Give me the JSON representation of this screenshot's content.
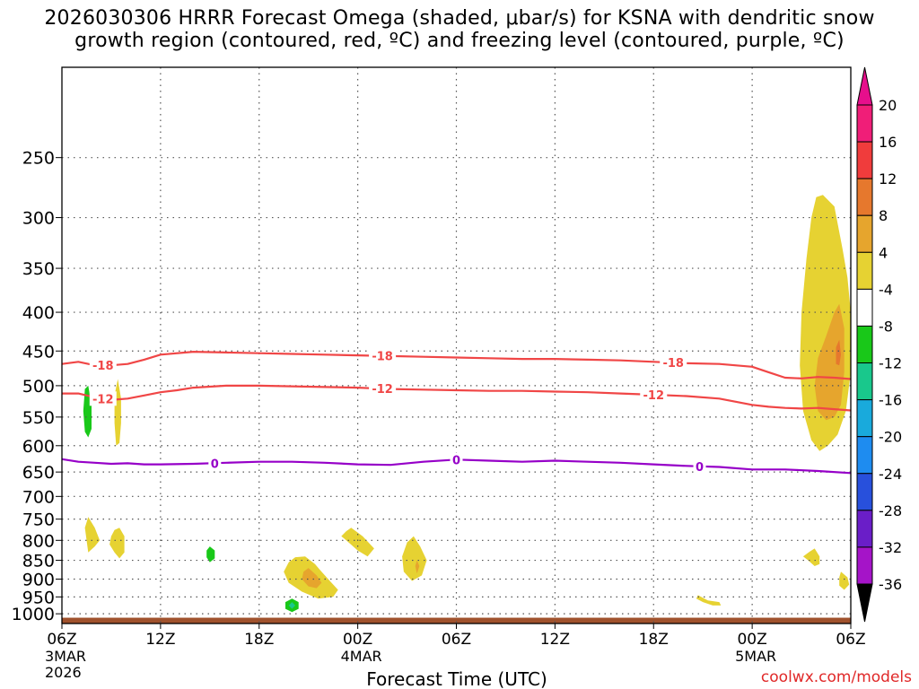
{
  "chart_data": {
    "type": "heatmap",
    "title_line1": "2026030306 HRRR Forecast Omega (shaded, μbar/s) for KSNA with dendritic snow",
    "title_line2": "growth region (contoured, red, ºC) and freezing level (contoured, purple, ºC)",
    "xlabel": "Forecast Time (UTC)",
    "ylabel": "",
    "credit": "coolwx.com/models",
    "x_range_hours": [
      0,
      48
    ],
    "y_range_hpa": [
      190,
      1030
    ],
    "y_scale": "log-pressure (inverted)",
    "grid": true,
    "x_ticks": [
      {
        "hour": 0,
        "label": "06Z",
        "sub1": "3MAR",
        "sub2": "2026"
      },
      {
        "hour": 6,
        "label": "12Z",
        "sub1": "",
        "sub2": ""
      },
      {
        "hour": 12,
        "label": "18Z",
        "sub1": "",
        "sub2": ""
      },
      {
        "hour": 18,
        "label": "00Z",
        "sub1": "4MAR",
        "sub2": ""
      },
      {
        "hour": 24,
        "label": "06Z",
        "sub1": "",
        "sub2": ""
      },
      {
        "hour": 30,
        "label": "12Z",
        "sub1": "",
        "sub2": ""
      },
      {
        "hour": 36,
        "label": "18Z",
        "sub1": "",
        "sub2": ""
      },
      {
        "hour": 42,
        "label": "00Z",
        "sub1": "5MAR",
        "sub2": ""
      },
      {
        "hour": 48,
        "label": "06Z",
        "sub1": "",
        "sub2": ""
      }
    ],
    "y_ticks": [
      250,
      300,
      350,
      400,
      450,
      500,
      550,
      600,
      650,
      700,
      750,
      800,
      850,
      900,
      950,
      1000
    ],
    "colorbar": {
      "labels": [
        "20",
        "16",
        "12",
        "8",
        "4",
        "-4",
        "-8",
        "-12",
        "-16",
        "-20",
        "-24",
        "-28",
        "-32",
        "-36"
      ],
      "colors": [
        "#f01e78",
        "#f03c3c",
        "#e6782d",
        "#e6a52d",
        "#e6d232",
        "#ffffff",
        "#19c819",
        "#19c88c",
        "#19aadc",
        "#1e8cf0",
        "#2850dc",
        "#6a1ec8",
        "#a514c8",
        "#aaaaaa"
      ],
      "top_arrow_color": "#e60f8c",
      "bottom_arrow_color": "#000000"
    },
    "contours": [
      {
        "label": "-18",
        "color": "#f04646",
        "x": [
          0,
          1,
          2,
          3,
          4,
          5,
          6,
          8,
          10,
          12,
          14,
          16,
          18,
          20,
          22,
          24,
          26,
          28,
          30,
          32,
          34,
          36,
          38,
          40,
          42,
          43,
          44,
          45,
          46,
          47,
          48
        ],
        "y": [
          468,
          465,
          470,
          470,
          468,
          462,
          455,
          451,
          452,
          453,
          454,
          455,
          456,
          457,
          458,
          459,
          460,
          461,
          461,
          462,
          463,
          465,
          467,
          468,
          472,
          480,
          488,
          489,
          487,
          488,
          490
        ],
        "label_hours": [
          2.5,
          19.5,
          37.2
        ]
      },
      {
        "label": "-12",
        "color": "#f04646",
        "x": [
          0,
          1,
          2,
          3,
          4,
          5,
          6,
          7,
          8,
          10,
          12,
          14,
          16,
          18,
          20,
          22,
          24,
          26,
          28,
          30,
          32,
          34,
          36,
          38,
          40,
          42,
          43,
          44,
          45,
          46,
          47,
          48
        ],
        "y": [
          512,
          512,
          518,
          522,
          520,
          515,
          510,
          507,
          503,
          500,
          500,
          501,
          502,
          503,
          505,
          506,
          507,
          508,
          508,
          509,
          510,
          512,
          514,
          516,
          520,
          530,
          533,
          535,
          536,
          535,
          537,
          539
        ],
        "label_hours": [
          2.5,
          19.5,
          36.0
        ]
      },
      {
        "label": "0",
        "color": "#9600c8",
        "x": [
          0,
          1,
          2,
          3,
          4,
          5,
          6,
          8,
          10,
          12,
          14,
          16,
          18,
          20,
          22,
          24,
          26,
          28,
          30,
          32,
          34,
          36,
          38,
          40,
          42,
          44,
          46,
          48
        ],
        "y": [
          625,
          630,
          632,
          634,
          633,
          635,
          635,
          634,
          632,
          630,
          630,
          632,
          635,
          636,
          630,
          626,
          628,
          630,
          628,
          630,
          632,
          635,
          638,
          640,
          645,
          645,
          648,
          652
        ],
        "label_hours": [
          9.3,
          24.0,
          38.8
        ]
      }
    ],
    "omega_features": [
      {
        "value": 4,
        "color": "#e6d232",
        "polygon": [
          [
            46.3,
            280
          ],
          [
            47.0,
            290
          ],
          [
            47.5,
            330
          ],
          [
            47.8,
            360
          ],
          [
            48.0,
            400
          ],
          [
            48.0,
            480
          ],
          [
            47.7,
            540
          ],
          [
            47.2,
            580
          ],
          [
            46.6,
            600
          ],
          [
            46.1,
            610
          ],
          [
            45.6,
            590
          ],
          [
            45.1,
            540
          ],
          [
            44.9,
            470
          ],
          [
            45.0,
            400
          ],
          [
            45.3,
            340
          ],
          [
            45.6,
            300
          ],
          [
            45.9,
            282
          ]
        ]
      },
      {
        "value": 8,
        "color": "#e6a52d",
        "polygon": [
          [
            47.3,
            390
          ],
          [
            47.6,
            420
          ],
          [
            47.6,
            480
          ],
          [
            47.4,
            530
          ],
          [
            47.0,
            550
          ],
          [
            46.5,
            555
          ],
          [
            46.0,
            540
          ],
          [
            45.8,
            500
          ],
          [
            46.0,
            460
          ],
          [
            46.5,
            430
          ],
          [
            47.0,
            400
          ]
        ]
      },
      {
        "value": 12,
        "color": "#e6782d",
        "polygon": [
          [
            47.3,
            435
          ],
          [
            47.4,
            455
          ],
          [
            47.3,
            470
          ],
          [
            47.1,
            468
          ],
          [
            47.1,
            445
          ]
        ]
      },
      {
        "value": 4,
        "color": "#e6d232",
        "polygon": [
          [
            3.4,
            490
          ],
          [
            3.6,
            520
          ],
          [
            3.6,
            560
          ],
          [
            3.5,
            595
          ],
          [
            3.3,
            600
          ],
          [
            3.2,
            560
          ],
          [
            3.2,
            515
          ]
        ]
      },
      {
        "value": -8,
        "color": "#19c819",
        "polygon": [
          [
            1.6,
            500
          ],
          [
            1.8,
            530
          ],
          [
            1.8,
            570
          ],
          [
            1.6,
            585
          ],
          [
            1.4,
            575
          ],
          [
            1.3,
            540
          ],
          [
            1.4,
            505
          ]
        ]
      },
      {
        "value": 4,
        "color": "#e6d232",
        "polygon": [
          [
            1.6,
            745
          ],
          [
            2.0,
            770
          ],
          [
            2.3,
            800
          ],
          [
            2.0,
            815
          ],
          [
            1.6,
            830
          ],
          [
            1.5,
            800
          ],
          [
            1.4,
            770
          ]
        ]
      },
      {
        "value": 4,
        "color": "#e6d232",
        "polygon": [
          [
            3.5,
            770
          ],
          [
            3.8,
            790
          ],
          [
            3.8,
            830
          ],
          [
            3.5,
            845
          ],
          [
            3.2,
            830
          ],
          [
            2.9,
            810
          ],
          [
            3.0,
            790
          ],
          [
            3.2,
            775
          ]
        ]
      },
      {
        "value": -8,
        "color": "#19c819",
        "polygon": [
          [
            9.0,
            815
          ],
          [
            9.3,
            825
          ],
          [
            9.3,
            845
          ],
          [
            9.0,
            855
          ],
          [
            8.8,
            842
          ],
          [
            8.8,
            825
          ]
        ]
      },
      {
        "value": 4,
        "color": "#e6d232",
        "polygon": [
          [
            14.8,
            840
          ],
          [
            15.4,
            860
          ],
          [
            15.8,
            880
          ],
          [
            16.3,
            905
          ],
          [
            16.8,
            930
          ],
          [
            16.5,
            950
          ],
          [
            15.6,
            955
          ],
          [
            14.6,
            935
          ],
          [
            13.8,
            910
          ],
          [
            13.5,
            880
          ],
          [
            13.8,
            855
          ],
          [
            14.2,
            842
          ]
        ]
      },
      {
        "value": 8,
        "color": "#e6a52d",
        "polygon": [
          [
            15.0,
            870
          ],
          [
            15.5,
            890
          ],
          [
            15.8,
            910
          ],
          [
            15.5,
            925
          ],
          [
            15.0,
            920
          ],
          [
            14.6,
            900
          ],
          [
            14.7,
            880
          ]
        ]
      },
      {
        "value": -8,
        "color": "#19c819",
        "polygon": [
          [
            14.0,
            955
          ],
          [
            14.4,
            965
          ],
          [
            14.4,
            985
          ],
          [
            14.0,
            995
          ],
          [
            13.6,
            985
          ],
          [
            13.6,
            965
          ]
        ]
      },
      {
        "value": -12,
        "color": "#19c88c",
        "polygon": [
          [
            14.0,
            965
          ],
          [
            14.2,
            975
          ],
          [
            14.0,
            985
          ],
          [
            13.8,
            975
          ]
        ]
      },
      {
        "value": 4,
        "color": "#e6d232",
        "polygon": [
          [
            17.6,
            770
          ],
          [
            18.3,
            790
          ],
          [
            19.0,
            820
          ],
          [
            18.6,
            840
          ],
          [
            18.0,
            825
          ],
          [
            17.3,
            800
          ],
          [
            17.0,
            790
          ],
          [
            17.3,
            778
          ]
        ]
      },
      {
        "value": 4,
        "color": "#e6d232",
        "polygon": [
          [
            21.4,
            790
          ],
          [
            21.8,
            815
          ],
          [
            22.2,
            850
          ],
          [
            21.9,
            890
          ],
          [
            21.3,
            905
          ],
          [
            20.8,
            880
          ],
          [
            20.7,
            840
          ],
          [
            21.0,
            805
          ]
        ]
      },
      {
        "value": 8,
        "color": "#e6a52d",
        "polygon": [
          [
            21.6,
            850
          ],
          [
            21.75,
            865
          ],
          [
            21.6,
            885
          ],
          [
            21.5,
            865
          ]
        ]
      },
      {
        "value": 4,
        "color": "#e6d232",
        "polygon": [
          [
            38.7,
            945
          ],
          [
            39.3,
            960
          ],
          [
            40.0,
            965
          ],
          [
            40.1,
            975
          ],
          [
            39.6,
            975
          ],
          [
            39.0,
            965
          ],
          [
            38.6,
            955
          ]
        ]
      },
      {
        "value": 4,
        "color": "#e6d232",
        "polygon": [
          [
            45.8,
            820
          ],
          [
            46.1,
            840
          ],
          [
            46.1,
            860
          ],
          [
            45.8,
            865
          ],
          [
            45.4,
            850
          ],
          [
            45.1,
            840
          ],
          [
            45.5,
            828
          ]
        ]
      },
      {
        "value": 4,
        "color": "#e6d232",
        "polygon": [
          [
            47.4,
            880
          ],
          [
            47.8,
            895
          ],
          [
            47.9,
            915
          ],
          [
            47.6,
            930
          ],
          [
            47.3,
            918
          ],
          [
            47.3,
            895
          ]
        ]
      }
    ],
    "ground": {
      "color": "#a0522d",
      "top_hpa": 1012
    }
  }
}
